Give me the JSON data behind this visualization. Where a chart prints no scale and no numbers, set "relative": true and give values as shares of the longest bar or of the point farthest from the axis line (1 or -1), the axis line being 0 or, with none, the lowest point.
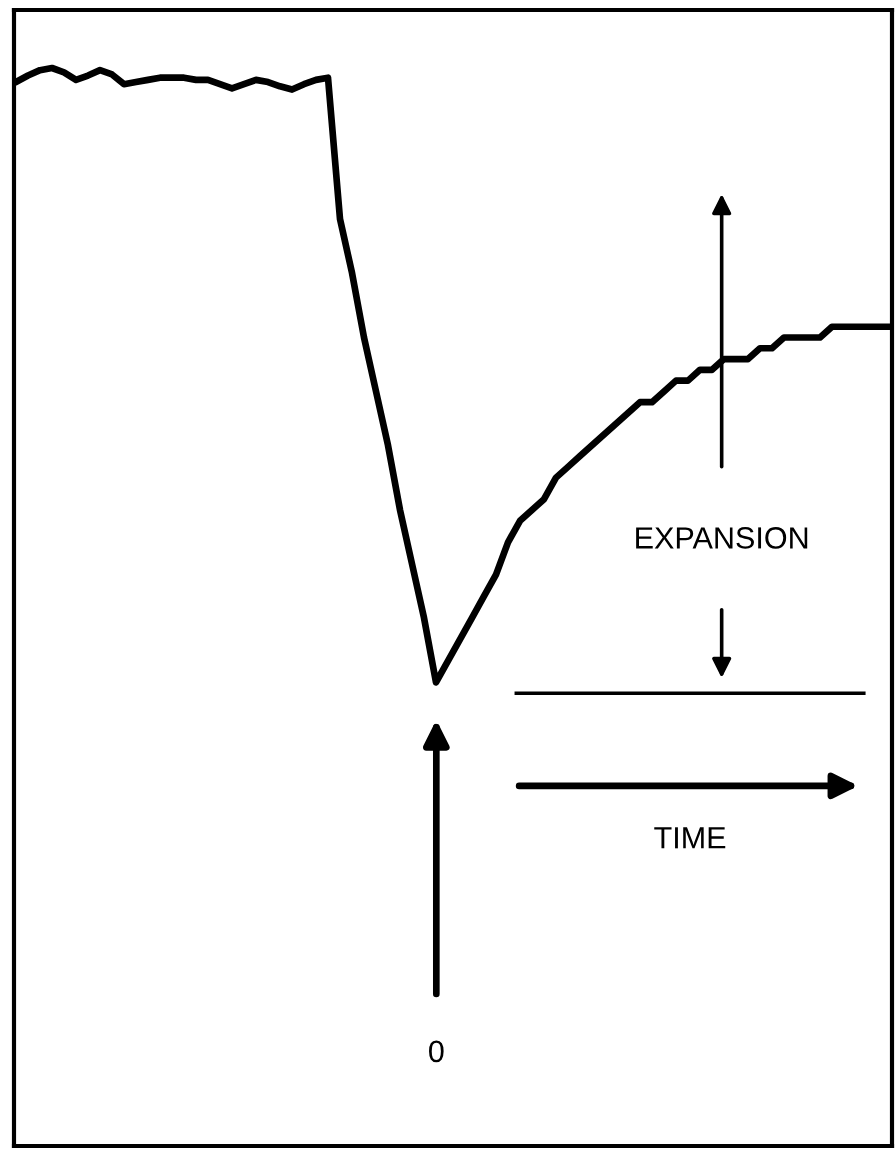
{
  "chart_data": {
    "type": "line",
    "relative": true,
    "line_style": "solid",
    "categories": [
      null,
      null,
      null,
      null,
      null,
      null,
      null,
      null,
      null,
      null,
      null,
      null,
      null,
      null,
      null,
      null,
      null,
      null,
      null,
      null,
      null,
      null,
      null,
      null,
      null,
      null,
      null,
      null,
      null,
      null,
      null,
      null,
      null,
      null,
      null,
      null,
      null,
      null,
      null,
      null,
      null,
      null,
      null,
      null,
      null,
      null,
      null,
      null,
      null,
      null,
      null,
      null,
      null,
      null,
      null,
      null,
      null,
      null,
      null,
      null,
      null,
      null,
      null,
      null,
      null,
      null,
      null,
      null,
      null,
      null,
      null,
      null,
      null,
      null
    ],
    "series": [
      {
        "color": "#000000",
        "values": [
          0.987,
          0.993,
          0.998,
          1.0,
          0.996,
          0.989,
          0.993,
          0.998,
          0.994,
          0.985,
          0.987,
          0.989,
          0.991,
          0.991,
          0.991,
          0.989,
          0.989,
          0.985,
          0.981,
          0.985,
          0.989,
          0.987,
          0.983,
          0.98,
          0.985,
          0.989,
          0.991,
          0.86,
          0.81,
          0.75,
          0.7,
          0.65,
          0.59,
          0.54,
          0.49,
          0.43,
          0.45,
          0.47,
          0.49,
          0.51,
          0.53,
          0.56,
          0.58,
          0.59,
          0.6,
          0.62,
          0.63,
          0.64,
          0.65,
          0.66,
          0.67,
          0.68,
          0.69,
          0.69,
          0.7,
          0.71,
          0.71,
          0.72,
          0.72,
          0.73,
          0.73,
          0.73,
          0.74,
          0.74,
          0.75,
          0.75,
          0.75,
          0.75,
          0.76,
          0.76,
          0.76,
          0.76,
          0.76,
          0.76
        ]
      }
    ],
    "ref_lines": [
      {
        "axis": "y",
        "value": 0.42,
        "color": "#000000"
      }
    ],
    "annotations": [
      "EXPANSION",
      "TIME",
      "0"
    ]
  }
}
